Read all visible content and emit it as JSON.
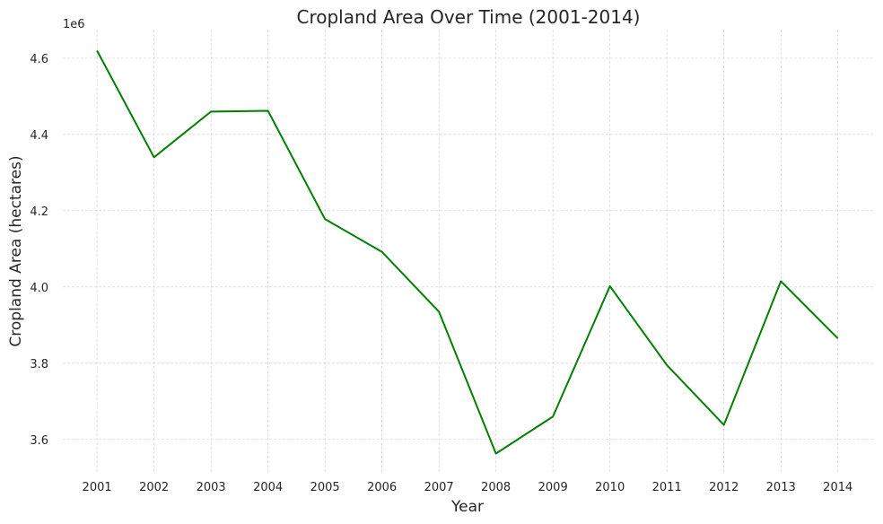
{
  "chart_data": {
    "type": "line",
    "title": "Cropland Area Over Time (2001-2014)",
    "xlabel": "Year",
    "ylabel": "Cropland Area (hectares)",
    "y_offset_label": "1e6",
    "x": [
      2001,
      2002,
      2003,
      2004,
      2005,
      2006,
      2007,
      2008,
      2009,
      2010,
      2011,
      2012,
      2013,
      2014
    ],
    "series": [
      {
        "values": [
          4620000,
          4340000,
          4460000,
          4462000,
          4178000,
          4092000,
          3935000,
          3563000,
          3660000,
          4002000,
          3795000,
          3638000,
          4015000,
          3865000
        ],
        "color": "#008000"
      }
    ],
    "xlim": [
      2000.4,
      2014.65
    ],
    "ylim": [
      3.51,
      4.675
    ],
    "x_ticks": [
      2001,
      2002,
      2003,
      2004,
      2005,
      2006,
      2007,
      2008,
      2009,
      2010,
      2011,
      2012,
      2013,
      2014
    ],
    "x_tick_labels": [
      "2001",
      "2002",
      "2003",
      "2004",
      "2005",
      "2006",
      "2007",
      "2008",
      "2009",
      "2010",
      "2011",
      "2012",
      "2013",
      "2014"
    ],
    "y_ticks": [
      3.6,
      3.8,
      4.0,
      4.2,
      4.4,
      4.6
    ],
    "y_tick_labels": [
      "3.6",
      "3.8",
      "4.0",
      "4.2",
      "4.4",
      "4.6"
    ],
    "grid": true,
    "grid_color": "#cccccc",
    "background": "#ffffff"
  }
}
